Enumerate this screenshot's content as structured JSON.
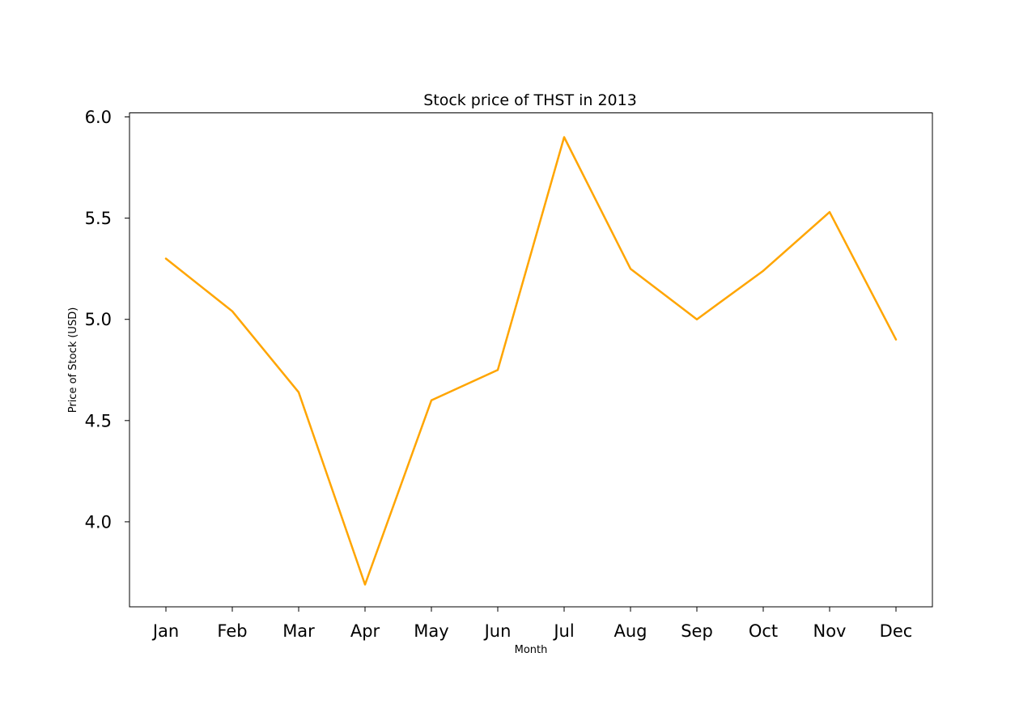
{
  "chart_data": {
    "type": "line",
    "title": "Stock price of THST in 2013",
    "xlabel": "Month",
    "ylabel": "Price of Stock (USD)",
    "categories": [
      "Jan",
      "Feb",
      "Mar",
      "Apr",
      "May",
      "Jun",
      "Jul",
      "Aug",
      "Sep",
      "Oct",
      "Nov",
      "Dec"
    ],
    "series": [
      {
        "values": [
          5.3,
          5.04,
          4.64,
          3.69,
          4.6,
          4.75,
          5.9,
          5.25,
          5.0,
          5.24,
          5.53,
          4.9
        ],
        "color": "#FFA500"
      }
    ],
    "yticks": [
      "4.0",
      "4.5",
      "5.0",
      "5.5",
      "6.0"
    ],
    "ylim": [
      3.58,
      6.02
    ],
    "grid": false,
    "legend": "none"
  }
}
